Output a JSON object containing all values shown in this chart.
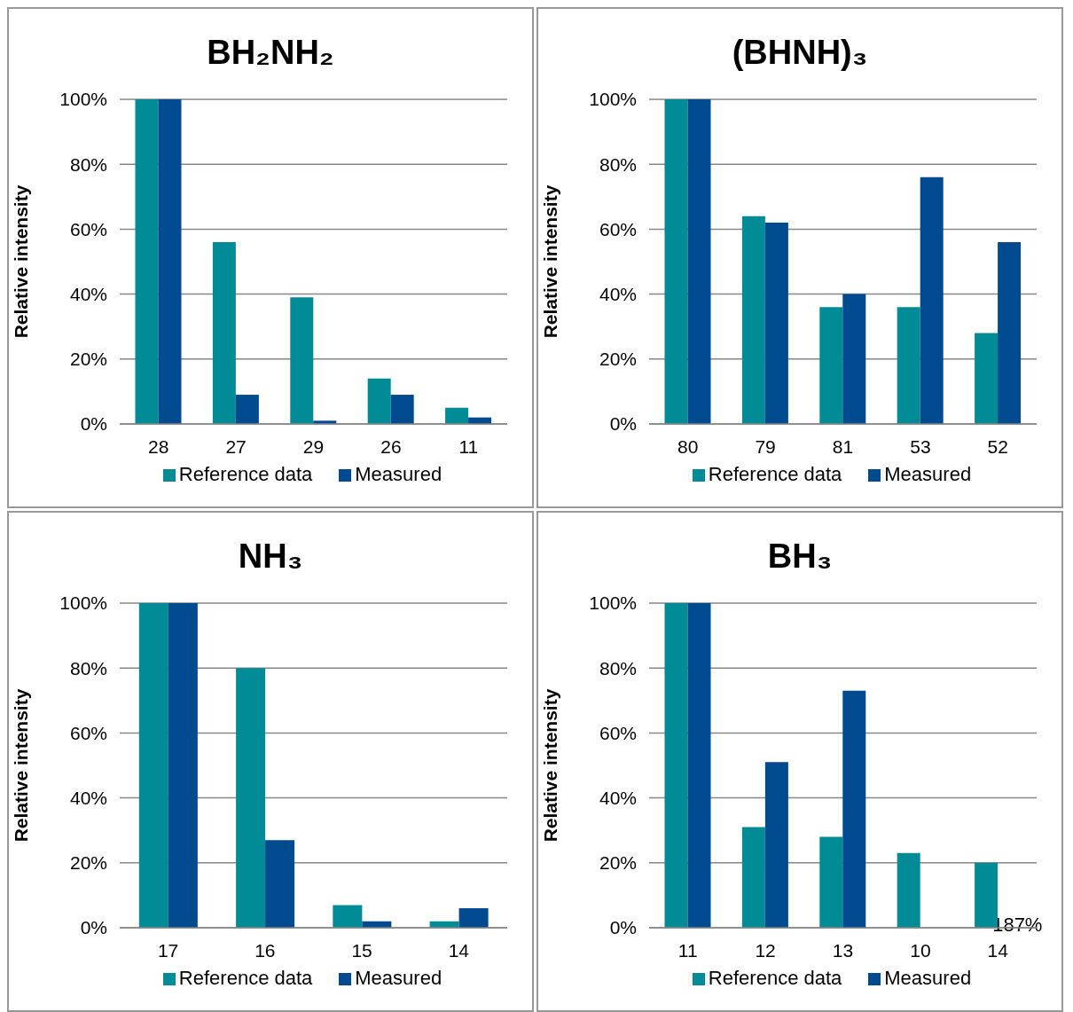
{
  "chart_data": [
    {
      "type": "bar",
      "title": "BH₂NH₂",
      "ylabel": "Relative intensity",
      "categories": [
        "28",
        "27",
        "29",
        "26",
        "11"
      ],
      "series": [
        {
          "name": "Reference data",
          "color": "#008b96",
          "values": [
            100,
            56,
            39,
            14,
            5
          ]
        },
        {
          "name": "Measured",
          "color": "#004a8f",
          "values": [
            100,
            9,
            1,
            9,
            2
          ]
        }
      ],
      "ylim": [
        0,
        100
      ],
      "yticks": [
        {
          "value": 0,
          "label": "0%"
        },
        {
          "value": 20,
          "label": "20%"
        },
        {
          "value": 40,
          "label": "40%"
        },
        {
          "value": 60,
          "label": "60%"
        },
        {
          "value": 80,
          "label": "80%"
        },
        {
          "value": 100,
          "label": "100%"
        }
      ],
      "grid": "y",
      "legend": "bottom"
    },
    {
      "type": "bar",
      "title": "(BHNH)₃",
      "ylabel": "Relative intensity",
      "categories": [
        "80",
        "79",
        "81",
        "53",
        "52"
      ],
      "series": [
        {
          "name": "Reference data",
          "color": "#008b96",
          "values": [
            100,
            64,
            36,
            36,
            28
          ]
        },
        {
          "name": "Measured",
          "color": "#004a8f",
          "values": [
            100,
            62,
            40,
            76,
            56
          ]
        }
      ],
      "ylim": [
        0,
        100
      ],
      "yticks": [
        {
          "value": 0,
          "label": "0%"
        },
        {
          "value": 20,
          "label": "20%"
        },
        {
          "value": 40,
          "label": "40%"
        },
        {
          "value": 60,
          "label": "60%"
        },
        {
          "value": 80,
          "label": "80%"
        },
        {
          "value": 100,
          "label": "100%"
        }
      ],
      "grid": "y",
      "legend": "bottom"
    },
    {
      "type": "bar",
      "title": "NH₃",
      "ylabel": "Relative intensity",
      "categories": [
        "17",
        "16",
        "15",
        "14"
      ],
      "series": [
        {
          "name": "Reference data",
          "color": "#008b96",
          "values": [
            100,
            80,
            7,
            2
          ]
        },
        {
          "name": "Measured",
          "color": "#004a8f",
          "values": [
            100,
            27,
            2,
            6
          ]
        }
      ],
      "ylim": [
        0,
        100
      ],
      "yticks": [
        {
          "value": 0,
          "label": "0%"
        },
        {
          "value": 20,
          "label": "20%"
        },
        {
          "value": 40,
          "label": "40%"
        },
        {
          "value": 60,
          "label": "60%"
        },
        {
          "value": 80,
          "label": "80%"
        },
        {
          "value": 100,
          "label": "100%"
        }
      ],
      "grid": "y",
      "legend": "bottom"
    },
    {
      "type": "bar",
      "title": "BH₃",
      "ylabel": "Relative intensity",
      "categories": [
        "11",
        "12",
        "13",
        "10",
        "14"
      ],
      "series": [
        {
          "name": "Reference data",
          "color": "#008b96",
          "values": [
            100,
            31,
            28,
            23,
            20
          ]
        },
        {
          "name": "Measured",
          "color": "#004a8f",
          "values": [
            100,
            51,
            73,
            0,
            null
          ]
        }
      ],
      "annotations": [
        {
          "text": "187%",
          "x": "14"
        }
      ],
      "ylim": [
        0,
        100
      ],
      "yticks": [
        {
          "value": 0,
          "label": "0%"
        },
        {
          "value": 20,
          "label": "20%"
        },
        {
          "value": 40,
          "label": "40%"
        },
        {
          "value": 60,
          "label": "60%"
        },
        {
          "value": 80,
          "label": "80%"
        },
        {
          "value": 100,
          "label": "100%"
        }
      ],
      "grid": "y",
      "legend": "bottom"
    }
  ]
}
